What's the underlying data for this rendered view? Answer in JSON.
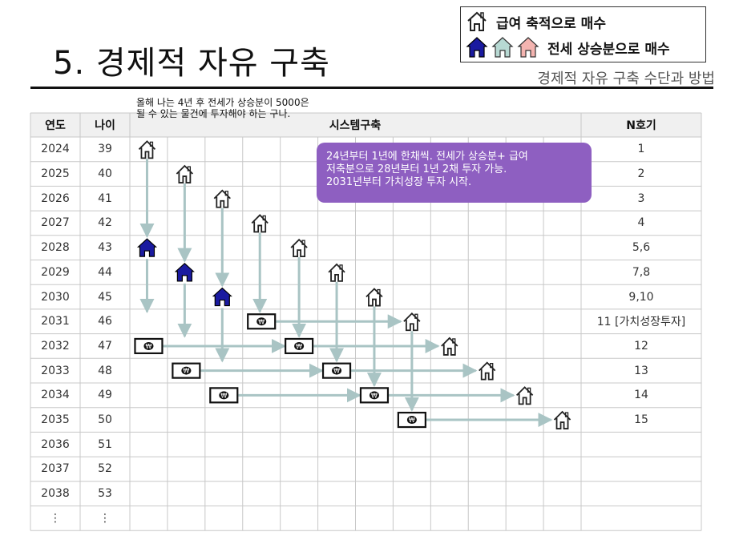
{
  "title": "5. 경제적 자유 구축",
  "subtitle": "경제적 자유 구축 수단과 방법",
  "legend": {
    "item1": "급여 축적으로 매수",
    "item2": "전세 상승분으로 매수"
  },
  "colors": {
    "purchase_house": "#1a1aa0",
    "callout": "#8e5fc1",
    "arrow": "#a9c4c4",
    "grid": "#c8c8c8",
    "header_bg": "#f0f0f0"
  },
  "note": "올해 나는 4년 후 전세가 상승분이 5000은 될 수 있는 물건에 투자해야 하는 구나.",
  "callout": {
    "line1": "24년부터 1년에 한채씩. 전세가 상승분+ 급여",
    "line2": "저축분으로 28년부터 1년 2채 투자 가능.",
    "line3": "2031년부터 가치성장 투자 시작."
  },
  "headers": {
    "year": "연도",
    "age": "나이",
    "system": "시스템구축",
    "n": "N호기"
  },
  "rows": [
    {
      "year": "2024",
      "age": "39",
      "n": "1"
    },
    {
      "year": "2025",
      "age": "40",
      "n": "2"
    },
    {
      "year": "2026",
      "age": "41",
      "n": "3"
    },
    {
      "year": "2027",
      "age": "42",
      "n": "4"
    },
    {
      "year": "2028",
      "age": "43",
      "n": "5,6"
    },
    {
      "year": "2029",
      "age": "44",
      "n": "7,8"
    },
    {
      "year": "2030",
      "age": "45",
      "n": "9,10"
    },
    {
      "year": "2031",
      "age": "46",
      "n": "11 [가치성장투자]"
    },
    {
      "year": "2032",
      "age": "47",
      "n": "12"
    },
    {
      "year": "2033",
      "age": "48",
      "n": "13"
    },
    {
      "year": "2034",
      "age": "49",
      "n": "14"
    },
    {
      "year": "2035",
      "age": "50",
      "n": "15"
    },
    {
      "year": "2036",
      "age": "51",
      "n": ""
    },
    {
      "year": "2037",
      "age": "52",
      "n": ""
    },
    {
      "year": "2038",
      "age": "53",
      "n": ""
    },
    {
      "year": "⋮",
      "age": "⋮",
      "n": ""
    }
  ],
  "icons": {
    "house_outline": "house-outline-icon",
    "house_filled": "house-filled-icon",
    "money": "banknote-icon",
    "currency_symbol": "₩"
  }
}
